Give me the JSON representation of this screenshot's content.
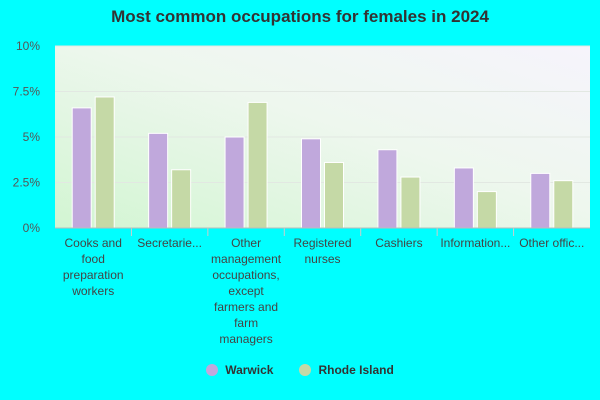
{
  "chart_data": {
    "type": "bar",
    "title": "Most common occupations for females in 2024",
    "categories": [
      [
        "Cooks and",
        "food",
        "preparation",
        "workers"
      ],
      [
        "Secretarie..."
      ],
      [
        "Other",
        "management",
        "occupations,",
        "except",
        "farmers and",
        "farm",
        "managers"
      ],
      [
        "Registered",
        "nurses"
      ],
      [
        "Cashiers"
      ],
      [
        "Information..."
      ],
      [
        "Other offic..."
      ]
    ],
    "series": [
      {
        "name": "Warwick",
        "color": "#c0a8dc",
        "values": [
          6.6,
          5.2,
          5.0,
          4.9,
          4.3,
          3.3,
          3.0
        ]
      },
      {
        "name": "Rhode Island",
        "color": "#c5d9a6",
        "values": [
          7.2,
          3.2,
          6.9,
          3.6,
          2.8,
          2.0,
          2.6
        ]
      }
    ],
    "ylim": [
      0,
      10
    ],
    "yticks": [
      0,
      2.5,
      5,
      7.5,
      10
    ],
    "ytick_labels": [
      "0%",
      "2.5%",
      "5%",
      "7.5%",
      "10%"
    ],
    "grid": true,
    "legend_position": "bottom"
  }
}
